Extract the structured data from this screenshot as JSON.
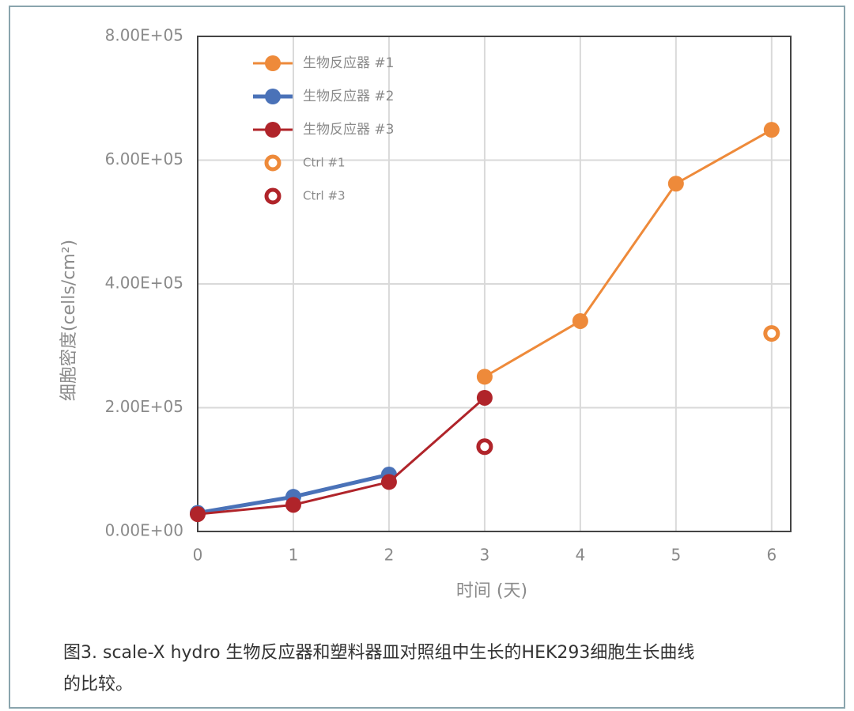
{
  "chart_data": {
    "type": "line",
    "y_label": "细胞密度(cells/cm²)",
    "x_label": "时间 (天)",
    "caption": "图3. scale-X hydro 生物反应器和塑料器皿对照组中生长的HEK293细胞生长曲线的比较。",
    "xlim": [
      0,
      6.2
    ],
    "xticks": [
      0,
      1,
      2,
      3,
      4,
      5,
      6
    ],
    "ylim": [
      0,
      800000
    ],
    "yticks": [
      {
        "value": 0,
        "label": "0.00E+00"
      },
      {
        "value": 200000,
        "label": "2.00E+05"
      },
      {
        "value": 400000,
        "label": "4.00E+05"
      },
      {
        "value": 600000,
        "label": "6.00E+05"
      },
      {
        "value": 800000,
        "label": "8.00E+05"
      }
    ],
    "grid": true,
    "legend": "upper left",
    "series": [
      {
        "name": "生物反应器 #1",
        "color": "#ee8a3a",
        "marker": "filled",
        "line": true,
        "x": [
          3,
          4,
          5,
          6
        ],
        "values": [
          250000,
          340000,
          562000,
          649000
        ]
      },
      {
        "name": "生物反应器 #2",
        "color": "#4a72b8",
        "marker": "filled",
        "line": true,
        "x": [
          0,
          1,
          2
        ],
        "values": [
          30000,
          56000,
          92000
        ]
      },
      {
        "name": "生物反应器 #3",
        "color": "#b0242a",
        "marker": "filled",
        "line": true,
        "x": [
          0,
          1,
          2,
          3
        ],
        "values": [
          28000,
          43000,
          80000,
          216000
        ]
      },
      {
        "name": "Ctrl #1",
        "color": "#ee8a3a",
        "marker": "open",
        "line": false,
        "x": [
          6
        ],
        "values": [
          320000
        ]
      },
      {
        "name": "Ctrl #3",
        "color": "#b0242a",
        "marker": "open",
        "line": false,
        "x": [
          3
        ],
        "values": [
          137000
        ]
      }
    ]
  }
}
